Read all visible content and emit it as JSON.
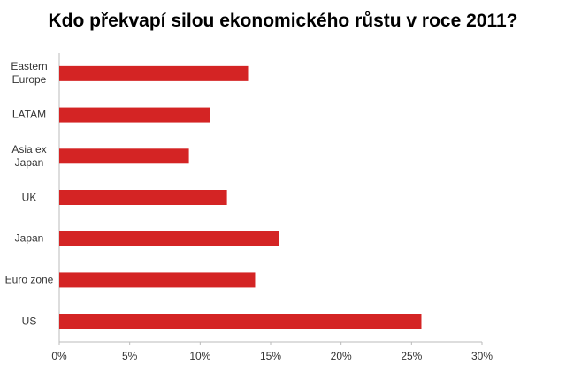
{
  "chart_data": {
    "type": "bar",
    "orientation": "horizontal",
    "title": "Kdo překvapí silou ekonomického růstu v roce 2011?",
    "categories": [
      "Eastern Europe",
      "LATAM",
      "Asia ex Japan",
      "UK",
      "Japan",
      "Euro zone",
      "US"
    ],
    "values": [
      13.4,
      10.7,
      9.2,
      11.9,
      15.6,
      13.9,
      25.7
    ],
    "color": "#d42424",
    "xlim": [
      0,
      30
    ],
    "xticks": [
      {
        "value": 0,
        "label": "0%"
      },
      {
        "value": 5,
        "label": "5%"
      },
      {
        "value": 10,
        "label": "10%"
      },
      {
        "value": 15,
        "label": "15%"
      },
      {
        "value": 20,
        "label": "20%"
      },
      {
        "value": 25,
        "label": "25%"
      },
      {
        "value": 30,
        "label": "30%"
      }
    ]
  }
}
